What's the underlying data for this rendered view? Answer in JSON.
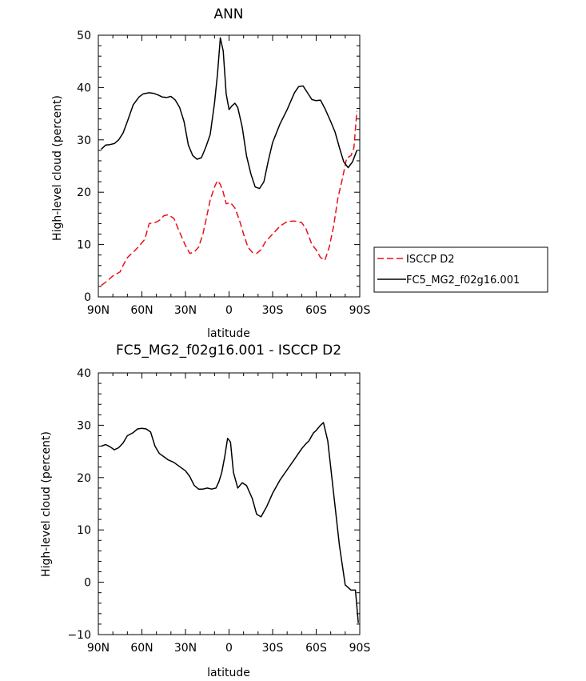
{
  "chart_data": [
    {
      "type": "line",
      "title": "ANN",
      "xlabel": "latitude",
      "ylabel": "High-level cloud (percent)",
      "xlim": [
        90,
        -90
      ],
      "ylim": [
        0,
        50
      ],
      "xticks": [
        90,
        60,
        30,
        0,
        -30,
        -60,
        -90
      ],
      "xtick_labels": [
        "90N",
        "60N",
        "30N",
        "0",
        "30S",
        "60S",
        "90S"
      ],
      "yticks": [
        0,
        10,
        20,
        30,
        40,
        50
      ],
      "ytick_labels": [
        "0",
        "10",
        "20",
        "30",
        "40",
        "50"
      ],
      "legend_position": "right",
      "series": [
        {
          "name": "ISCCP D2",
          "color": "#e8101a",
          "dash": "dashed",
          "x": [
            88,
            85,
            82,
            80,
            75,
            73,
            70,
            65,
            62,
            58,
            55,
            50,
            47,
            45,
            42,
            38,
            35,
            30,
            27,
            24,
            21,
            18,
            16,
            13,
            10,
            8,
            6,
            4,
            2,
            -1,
            -4,
            -7,
            -10,
            -13,
            -16,
            -19,
            -22,
            -25,
            -30,
            -35,
            -40,
            -45,
            -50,
            -53,
            -57,
            -60,
            -63,
            -66,
            -69,
            -72,
            -75,
            -78,
            -81,
            -84,
            -86,
            -88
          ],
          "y": [
            2.2,
            2.8,
            3.5,
            4.0,
            4.8,
            6.0,
            7.5,
            8.8,
            9.7,
            11.0,
            14.0,
            14.3,
            14.8,
            15.5,
            15.7,
            15.0,
            13.0,
            9.8,
            8.3,
            8.6,
            9.5,
            12.0,
            14.5,
            18.5,
            21.0,
            22.2,
            21.5,
            20.0,
            17.8,
            18.0,
            17.0,
            14.8,
            12.0,
            9.5,
            8.5,
            8.3,
            9.0,
            10.5,
            12.0,
            13.5,
            14.4,
            14.5,
            14.2,
            13.0,
            10.0,
            9.0,
            7.5,
            7.0,
            9.5,
            13.5,
            19.0,
            22.5,
            26.5,
            27.0,
            28.5,
            35.5
          ]
        },
        {
          "name": "FC5_MG2_f02g16.001",
          "color": "#000000",
          "dash": "solid",
          "x": [
            88,
            85,
            82,
            79,
            76,
            73,
            70,
            66,
            62,
            59,
            55,
            52,
            49,
            46,
            43,
            40,
            37,
            34,
            31,
            28,
            25,
            22,
            19,
            16,
            13,
            10,
            8,
            6,
            4,
            2,
            0,
            -2,
            -4,
            -6,
            -9,
            -12,
            -15,
            -18,
            -21,
            -24,
            -27,
            -30,
            -35,
            -40,
            -45,
            -48,
            -51,
            -54,
            -57,
            -60,
            -63,
            -66,
            -70,
            -73,
            -76,
            -79,
            -82,
            -85,
            -88
          ],
          "y": [
            28.2,
            29.0,
            29.1,
            29.3,
            30.0,
            31.3,
            33.5,
            36.7,
            38.2,
            38.8,
            39.0,
            38.9,
            38.6,
            38.2,
            38.1,
            38.3,
            37.6,
            36.2,
            33.5,
            29.0,
            27.0,
            26.3,
            26.6,
            28.6,
            31.0,
            37.0,
            42.5,
            49.5,
            47.0,
            38.8,
            35.8,
            36.5,
            37.0,
            36.2,
            32.5,
            27.0,
            23.5,
            21.0,
            20.7,
            22.0,
            26.0,
            29.5,
            33.0,
            35.8,
            39.0,
            40.2,
            40.3,
            39.0,
            37.7,
            37.5,
            37.6,
            36.0,
            33.5,
            31.5,
            28.5,
            25.8,
            24.7,
            25.8,
            28.0
          ]
        }
      ]
    },
    {
      "type": "line",
      "title": "FC5_MG2_f02g16.001 - ISCCP D2",
      "xlabel": "latitude",
      "ylabel": "High-level cloud (percent)",
      "xlim": [
        90,
        -90
      ],
      "ylim": [
        -10,
        40
      ],
      "xticks": [
        90,
        60,
        30,
        0,
        -30,
        -60,
        -90
      ],
      "xtick_labels": [
        "90N",
        "60N",
        "30N",
        "0",
        "30S",
        "60S",
        "90S"
      ],
      "yticks": [
        -10,
        0,
        10,
        20,
        30,
        40
      ],
      "ytick_labels": [
        "−10",
        "0",
        "10",
        "20",
        "30",
        "40"
      ],
      "series": [
        {
          "color": "#000000",
          "dash": "solid",
          "x": [
            88,
            85,
            82,
            79,
            76,
            73,
            70,
            66,
            63,
            60,
            57,
            54,
            51,
            48,
            45,
            42,
            38,
            35,
            30,
            27,
            24,
            21,
            18,
            15,
            12,
            9,
            7,
            5,
            3,
            1,
            -1,
            -3,
            -6,
            -9,
            -12,
            -16,
            -19,
            -22,
            -26,
            -30,
            -35,
            -40,
            -45,
            -50,
            -53,
            -55,
            -58,
            -60,
            -63,
            -65,
            -68,
            -72,
            -76,
            -80,
            -84,
            -87,
            -89
          ],
          "y": [
            26.0,
            26.3,
            25.9,
            25.3,
            25.7,
            26.6,
            28.0,
            28.6,
            29.3,
            29.4,
            29.3,
            28.7,
            26.0,
            24.6,
            24.0,
            23.4,
            22.9,
            22.3,
            21.3,
            20.2,
            18.5,
            17.8,
            17.8,
            18.0,
            17.8,
            18.0,
            19.2,
            21.0,
            24.0,
            27.5,
            26.8,
            21.0,
            18.0,
            19.0,
            18.5,
            16.0,
            13.0,
            12.5,
            14.5,
            17.0,
            19.5,
            21.5,
            23.5,
            25.5,
            26.5,
            27.0,
            28.5,
            29.0,
            30.0,
            30.5,
            27.0,
            17.0,
            7.0,
            -0.5,
            -1.5,
            -1.5,
            -7.8
          ]
        }
      ]
    }
  ]
}
